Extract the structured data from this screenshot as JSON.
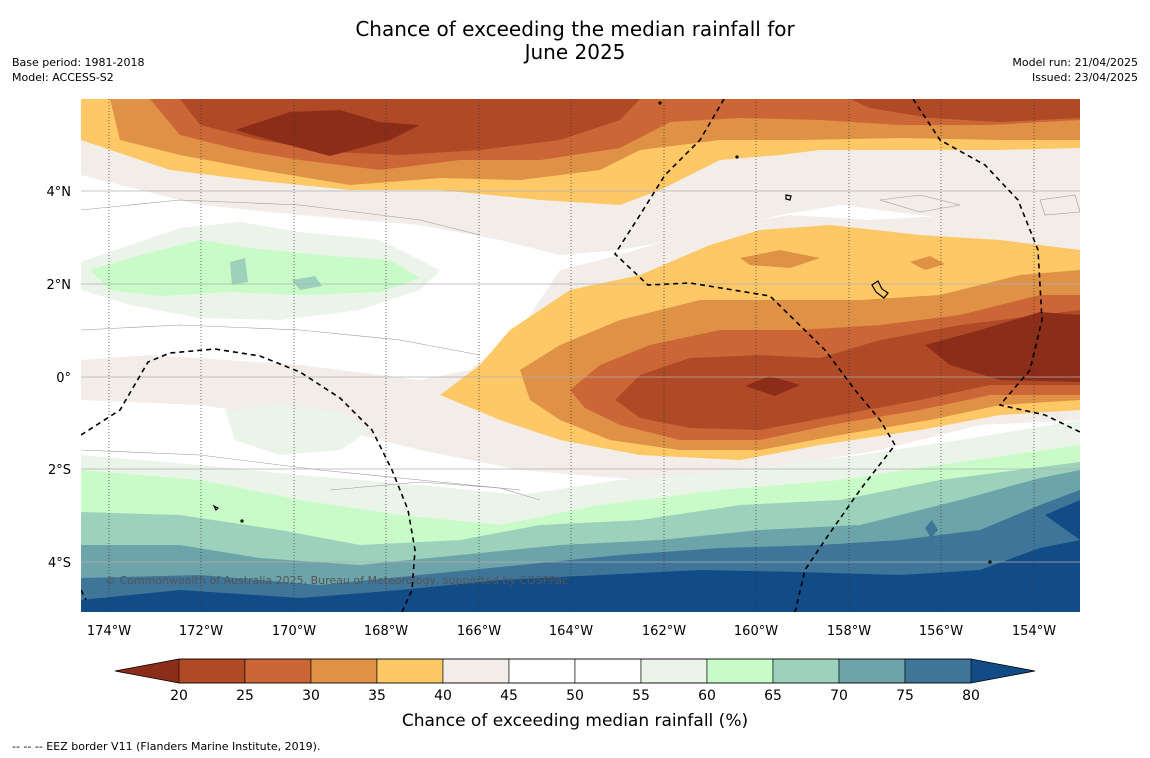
{
  "title_line1": "Chance of exceeding the median rainfall for",
  "title_line2": "June 2025",
  "base_period": "Base period: 1981-2018",
  "model": "Model: ACCESS-S2",
  "model_run": "Model run: 21/04/2025",
  "issued": "Issued: 23/04/2025",
  "copyright": "© Commonwealth of Australia 2025, Bureau of Meteorology, supported by COSPPac",
  "footnote": "--  --  -- EEZ border V11 (Flanders Marine Institute, 2019).",
  "lat_labels": [
    "4°N",
    "2°N",
    "0°",
    "2°S",
    "4°S"
  ],
  "lon_labels": [
    "174°W",
    "172°W",
    "170°W",
    "168°W",
    "166°W",
    "164°W",
    "162°W",
    "160°W",
    "158°W",
    "156°W",
    "154°W"
  ],
  "colorbar": {
    "label": "Chance of exceeding median rainfall (%)",
    "ticks": [
      "20",
      "25",
      "30",
      "35",
      "40",
      "45",
      "50",
      "55",
      "60",
      "65",
      "70",
      "75",
      "80"
    ],
    "under_color": "#8c2d1a",
    "over_color": "#124c87",
    "colors": [
      "#b04a26",
      "#cd6637",
      "#df9146",
      "#fdc865",
      "#f2ede8",
      "#ffffff",
      "#ffffff",
      "#eaf4e9",
      "#c9fbc9",
      "#9cd2bc",
      "#6ca4a9",
      "#3f7599"
    ]
  }
}
